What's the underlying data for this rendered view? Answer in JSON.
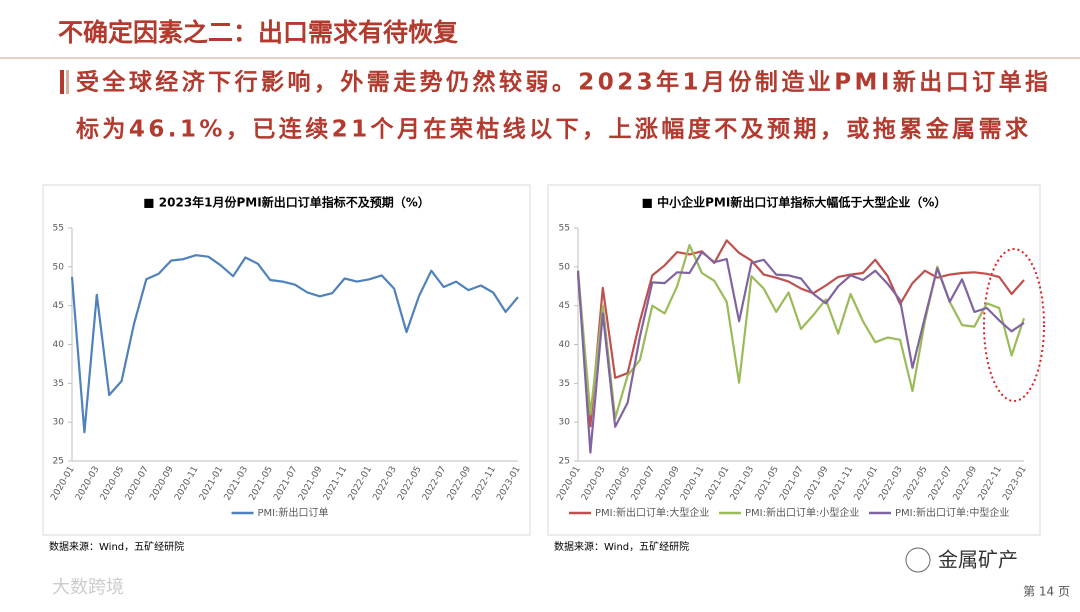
{
  "header": {
    "title": "不确定因素之二：出口需求有待恢复",
    "subtitle": [
      "受全球经济下行影响，外需走势仍然较弱。2023年1月份制造业PMI新出口订单指",
      "标为46.1%，已连续21个月在荣枯线以下，上涨幅度不及预期，或拖累金属需求"
    ]
  },
  "chart_data": [
    {
      "type": "line",
      "title": "■ 2023年1月份PMI新出口订单指标不及预期（%）",
      "source": "数据来源：Wind，五矿经研院",
      "legend": "bottom",
      "grid": false,
      "categories": [
        "2020-01",
        null,
        "2020-03",
        null,
        "2020-05",
        null,
        "2020-07",
        null,
        "2020-09",
        null,
        "2020-11",
        null,
        "2021-01",
        null,
        "2021-03",
        null,
        "2021-05",
        null,
        "2021-07",
        null,
        "2021-09",
        null,
        "2021-11",
        null,
        "2022-01",
        null,
        "2022-03",
        null,
        "2022-05",
        null,
        "2022-07",
        null,
        "2022-09",
        null,
        "2022-11",
        null,
        "2023-01"
      ],
      "ylim": [
        25,
        55
      ],
      "yticks": [
        25,
        30,
        35,
        40,
        45,
        50,
        55
      ],
      "series": [
        {
          "name": "PMI:新出口订单",
          "color": "#4f81bd",
          "values": [
            48.7,
            28.7,
            46.4,
            33.5,
            35.3,
            42.6,
            48.4,
            49.1,
            50.8,
            51.0,
            51.5,
            51.3,
            50.2,
            48.8,
            51.2,
            50.4,
            48.3,
            48.1,
            47.7,
            46.7,
            46.2,
            46.6,
            48.5,
            48.1,
            48.4,
            48.9,
            47.2,
            41.6,
            46.2,
            49.5,
            47.4,
            48.1,
            47.0,
            47.6,
            46.7,
            44.2,
            46.1
          ]
        }
      ]
    },
    {
      "type": "line",
      "title": "■ 中小企业PMI新出口订单指标大幅低于大型企业（%）",
      "source": "数据来源：Wind，五矿经研院",
      "legend": "bottom",
      "grid": false,
      "categories": [
        "2020-01",
        null,
        "2020-03",
        null,
        "2020-05",
        null,
        "2020-07",
        null,
        "2020-09",
        null,
        "2020-11",
        null,
        "2021-01",
        null,
        "2021-03",
        null,
        "2021-05",
        null,
        "2021-07",
        null,
        "2021-09",
        null,
        "2021-11",
        null,
        "2022-01",
        null,
        "2022-03",
        null,
        "2022-05",
        null,
        "2022-07",
        null,
        "2022-09",
        null,
        "2022-11",
        null,
        "2023-01"
      ],
      "ylim": [
        25,
        55
      ],
      "yticks": [
        25,
        30,
        35,
        40,
        45,
        50,
        55
      ],
      "series": [
        {
          "name": "PMI:新出口订单:大型企业",
          "color": "#c0504d",
          "values": [
            49,
            29.5,
            47.3,
            35.7,
            36.3,
            43,
            48.9,
            50.2,
            51.9,
            51.6,
            52,
            50.5,
            53.4,
            51.8,
            50.8,
            49,
            48.6,
            48.1,
            47.2,
            46.6,
            47.6,
            48.7,
            49,
            49.2,
            50.9,
            48.8,
            45.2,
            47.9,
            49.5,
            48.6,
            49,
            49.2,
            49.3,
            49.1,
            48.7,
            46.5,
            48.3
          ]
        },
        {
          "name": "PMI:新出口订单:小型企业",
          "color": "#9bbb59",
          "values": [
            49.5,
            31,
            45,
            30.5,
            36,
            38,
            45,
            44,
            47.5,
            52.8,
            49.2,
            48.2,
            45.5,
            35.1,
            48.8,
            47.2,
            44.2,
            46.7,
            42,
            43.8,
            45.8,
            41.4,
            46.5,
            43,
            40.3,
            40.9,
            40.6,
            34,
            43,
            50,
            45.5,
            42.5,
            42.3,
            45.3,
            44.7,
            38.6,
            43.4
          ]
        },
        {
          "name": "PMI:新出口订单:中型企业",
          "color": "#8064a2",
          "values": [
            49.5,
            26.1,
            44,
            29.4,
            32.5,
            41,
            48,
            47.9,
            49.3,
            49.2,
            51.9,
            50.6,
            51,
            43,
            50.5,
            50.9,
            49,
            48.9,
            48.5,
            46.5,
            45.3,
            47.5,
            48.9,
            48.3,
            49.5,
            47.8,
            45.7,
            37,
            43.5,
            49.8,
            45.5,
            48.4,
            44.2,
            44.7,
            43.1,
            41.7,
            42.8
          ]
        }
      ]
    }
  ],
  "footer": {
    "brand": "金属矿产",
    "page": "第 14 页",
    "watermark": "大数跨境"
  }
}
